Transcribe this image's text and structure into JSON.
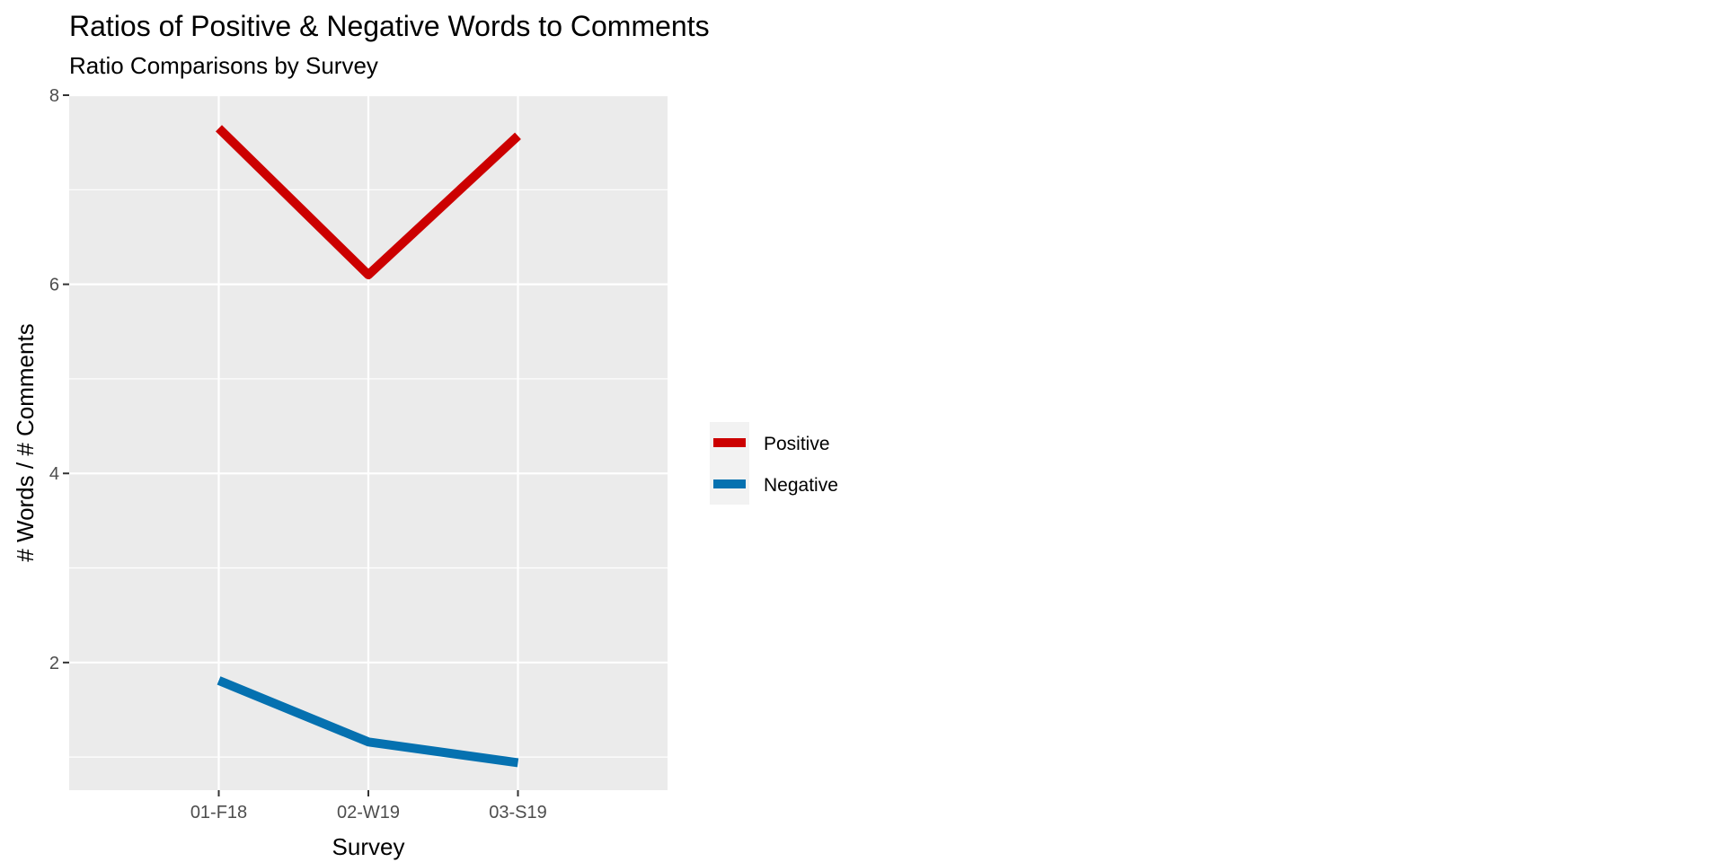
{
  "chart_data": {
    "type": "line",
    "title": "Ratios of Positive & Negative Words to Comments",
    "subtitle": "Ratio Comparisons by Survey",
    "xlabel": "Survey",
    "ylabel": "# Words / # Comments",
    "categories": [
      "01-F18",
      "02-W19",
      "03-S19"
    ],
    "yticks": [
      2,
      4,
      6,
      8
    ],
    "ylim": [
      0.65,
      8.0
    ],
    "grid": true,
    "legend_position": "right",
    "series": [
      {
        "name": "Positive",
        "color": "#CC0000",
        "values": [
          7.65,
          6.1,
          7.57
        ]
      },
      {
        "name": "Negative",
        "color": "#0571B0",
        "values": [
          1.81,
          1.16,
          0.94
        ]
      }
    ]
  }
}
